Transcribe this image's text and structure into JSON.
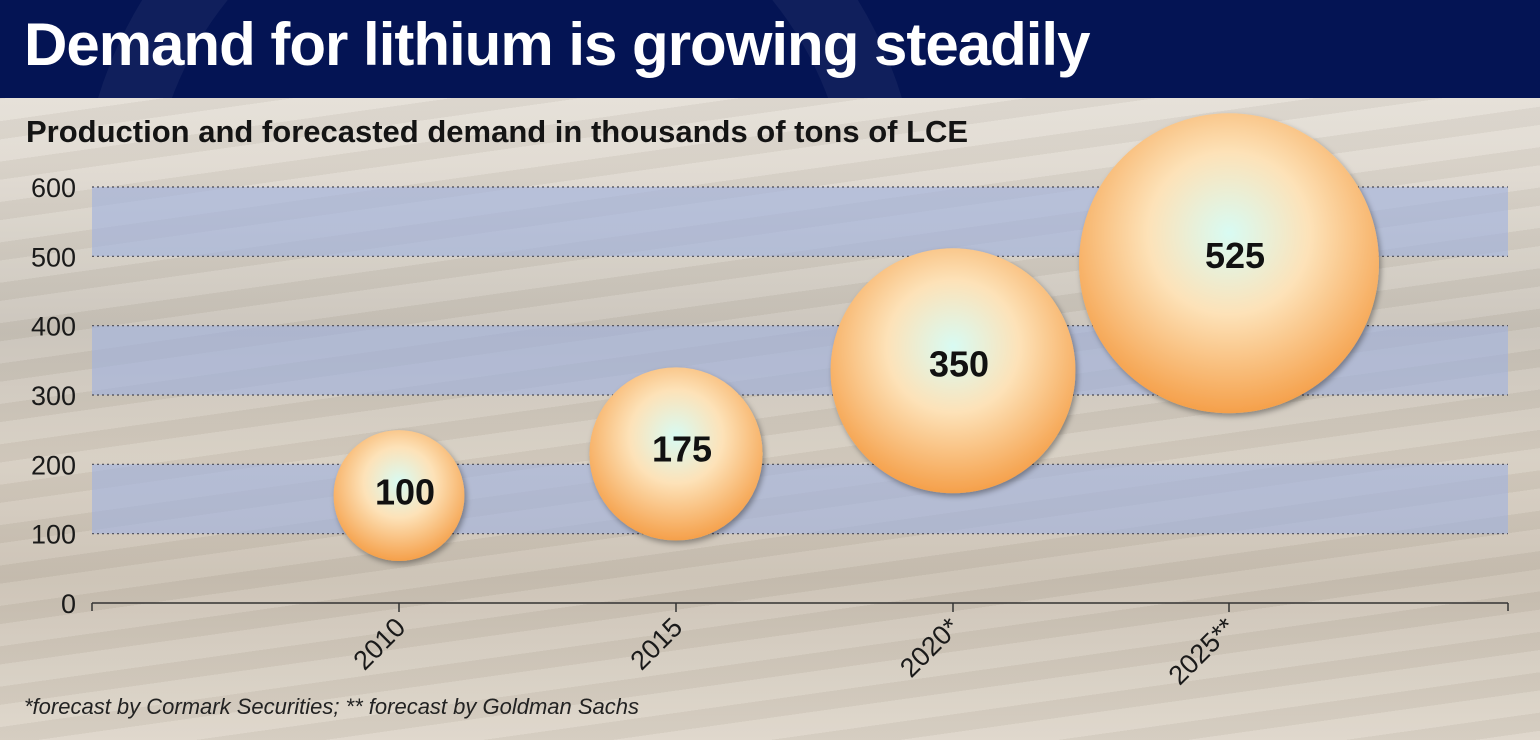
{
  "header": {
    "title": "Demand for lithium is growing steadily",
    "subtitle": "Production and forecasted demand in thousands of tons of LCE"
  },
  "footnote": "*forecast by Cormark Securities; ** forecast by Goldman Sachs",
  "colors": {
    "header_bg": "#041454",
    "band_blue": "#9fb1df",
    "bubble_edge": "#f5a04a",
    "bubble_center": "#d8fbf3"
  },
  "chart_data": {
    "type": "scatter",
    "title": "Demand for lithium is growing steadily",
    "subtitle": "Production and forecasted demand in thousands of tons of LCE",
    "categories": [
      "2010",
      "2015",
      "2020*",
      "2025**"
    ],
    "values": [
      100,
      175,
      350,
      525
    ],
    "data_labels": [
      "100",
      "175",
      "350",
      "525"
    ],
    "ylim": [
      0,
      600
    ],
    "yticks": [
      0,
      100,
      200,
      300,
      400,
      500,
      600
    ],
    "ytick_labels": [
      "0",
      "100",
      "200",
      "300",
      "400",
      "500",
      "600"
    ],
    "bubble_center_y": [
      155,
      215,
      335,
      490
    ],
    "bubble_size": [
      100,
      175,
      350,
      525
    ],
    "grid": true,
    "bands": [
      [
        100,
        200
      ],
      [
        300,
        400
      ],
      [
        500,
        600
      ]
    ],
    "xlabel": "",
    "ylabel": ""
  }
}
